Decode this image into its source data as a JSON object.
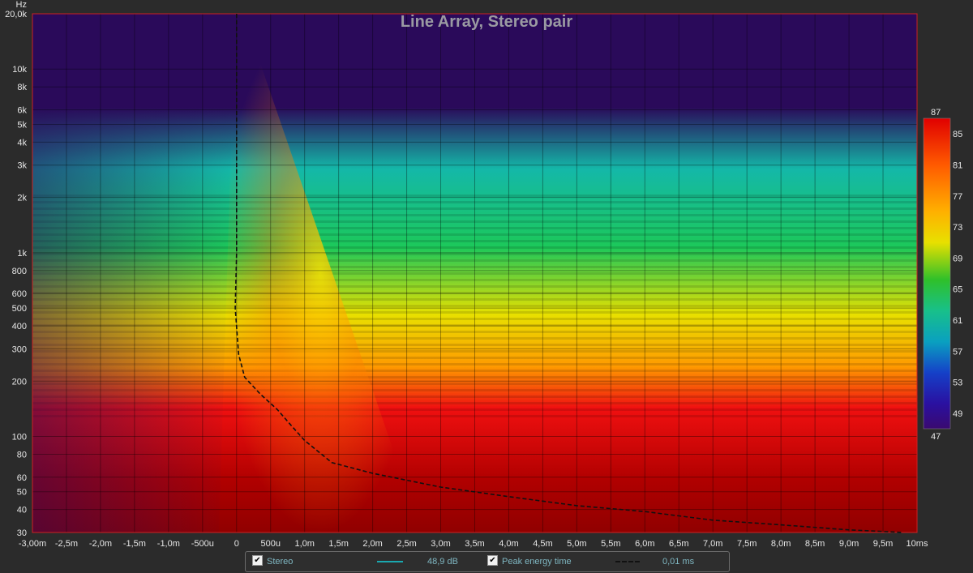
{
  "chart_data": {
    "type": "heatmap",
    "title": "Line Array, Stereo pair",
    "ylabel": "Hz",
    "x_ticks": [
      "-3,00m",
      "-2,5m",
      "-2,0m",
      "-1,5m",
      "-1,0m",
      "-500u",
      "0",
      "500u",
      "1,0m",
      "1,5m",
      "2,0m",
      "2,5m",
      "3,0m",
      "3,5m",
      "4,0m",
      "4,5m",
      "5,0m",
      "5,5m",
      "6,0m",
      "6,5m",
      "7,0m",
      "7,5m",
      "8,0m",
      "8,5m",
      "9,0m",
      "9,5m",
      "10ms"
    ],
    "x_tick_values_ms": [
      -3,
      -2.5,
      -2,
      -1.5,
      -1,
      -0.5,
      0,
      0.5,
      1,
      1.5,
      2,
      2.5,
      3,
      3.5,
      4,
      4.5,
      5,
      5.5,
      6,
      6.5,
      7,
      7.5,
      8,
      8.5,
      9,
      9.5,
      10
    ],
    "xlim_ms": [
      -3,
      10
    ],
    "y_ticks": [
      {
        "label": "20,0k",
        "value": 20000
      },
      {
        "label": "10k",
        "value": 10000
      },
      {
        "label": "8k",
        "value": 8000
      },
      {
        "label": "6k",
        "value": 6000
      },
      {
        "label": "5k",
        "value": 5000
      },
      {
        "label": "4k",
        "value": 4000
      },
      {
        "label": "3k",
        "value": 3000
      },
      {
        "label": "2k",
        "value": 2000
      },
      {
        "label": "1k",
        "value": 1000
      },
      {
        "label": "800",
        "value": 800
      },
      {
        "label": "600",
        "value": 600
      },
      {
        "label": "500",
        "value": 500
      },
      {
        "label": "400",
        "value": 400
      },
      {
        "label": "300",
        "value": 300
      },
      {
        "label": "200",
        "value": 200
      },
      {
        "label": "100",
        "value": 100
      },
      {
        "label": "80",
        "value": 80
      },
      {
        "label": "60",
        "value": 60
      },
      {
        "label": "50",
        "value": 50
      },
      {
        "label": "40",
        "value": 40
      },
      {
        "label": "30",
        "value": 30
      }
    ],
    "ylim_hz": [
      30,
      20000
    ],
    "y_scale": "log",
    "colorbar": {
      "min_label": "47",
      "max_label": "87",
      "ticks": [
        "85",
        "81",
        "77",
        "73",
        "69",
        "65",
        "61",
        "57",
        "53",
        "49"
      ],
      "tick_values": [
        85,
        81,
        77,
        73,
        69,
        65,
        61,
        57,
        53,
        49
      ],
      "range": [
        47,
        87
      ],
      "colors": [
        "#2a0a5a",
        "#1a1ac0",
        "#0a6ad0",
        "#14b8a8",
        "#1cc85a",
        "#5ad020",
        "#e8e000",
        "#ff9a00",
        "#f01010",
        "#900000"
      ]
    },
    "peak_energy_curve": [
      {
        "t_ms": 0.0,
        "f_hz": 20000
      },
      {
        "t_ms": 0.0,
        "f_hz": 5000
      },
      {
        "t_ms": 0.0,
        "f_hz": 1000
      },
      {
        "t_ms": -0.02,
        "f_hz": 500
      },
      {
        "t_ms": 0.03,
        "f_hz": 280
      },
      {
        "t_ms": 0.12,
        "f_hz": 210
      },
      {
        "t_ms": 0.35,
        "f_hz": 170
      },
      {
        "t_ms": 0.6,
        "f_hz": 140
      },
      {
        "t_ms": 0.8,
        "f_hz": 115
      },
      {
        "t_ms": 1.0,
        "f_hz": 95
      },
      {
        "t_ms": 1.4,
        "f_hz": 72
      },
      {
        "t_ms": 2.0,
        "f_hz": 63
      },
      {
        "t_ms": 3.0,
        "f_hz": 53
      },
      {
        "t_ms": 4.0,
        "f_hz": 47
      },
      {
        "t_ms": 5.0,
        "f_hz": 42
      },
      {
        "t_ms": 6.0,
        "f_hz": 39
      },
      {
        "t_ms": 7.0,
        "f_hz": 35
      },
      {
        "t_ms": 8.0,
        "f_hz": 33
      },
      {
        "t_ms": 9.0,
        "f_hz": 31
      },
      {
        "t_ms": 9.8,
        "f_hz": 30
      }
    ]
  },
  "legend": {
    "stereo_label": "Stereo",
    "stereo_value": "48,9 dB",
    "stereo_color": "#1aa8b0",
    "peak_label": "Peak energy time",
    "peak_value": "0,01 ms",
    "check_icon": "check-icon"
  }
}
